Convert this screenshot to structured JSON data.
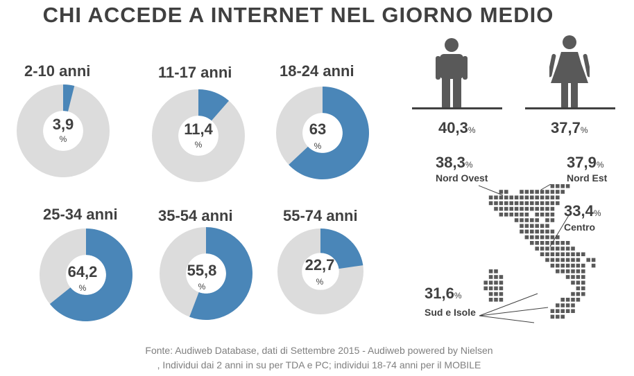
{
  "title": "CHI ACCEDE A INTERNET NEL GIORNO MEDIO",
  "percent_sign": "%",
  "age_groups": [
    {
      "label": "2-10 anni",
      "value": 3.9,
      "display": "3,9"
    },
    {
      "label": "11-17 anni",
      "value": 11.4,
      "display": "11,4"
    },
    {
      "label": "18-24 anni",
      "value": 63,
      "display": "63"
    },
    {
      "label": "25-34 anni",
      "value": 64.2,
      "display": "64,2"
    },
    {
      "label": "35-54 anni",
      "value": 55.8,
      "display": "55,8"
    },
    {
      "label": "55-74 anni",
      "value": 22.7,
      "display": "22,7"
    }
  ],
  "gender": {
    "male": {
      "value": "40,3",
      "icon": "man-icon"
    },
    "female": {
      "value": "37,7",
      "icon": "woman-icon"
    }
  },
  "regions": {
    "nord_ovest": {
      "value": "38,3",
      "label": "Nord Ovest"
    },
    "nord_est": {
      "value": "37,9",
      "label": "Nord Est"
    },
    "centro": {
      "value": "33,4",
      "label": "Centro"
    },
    "sud_isole": {
      "value": "31,6",
      "label": "Sud e Isole"
    }
  },
  "colors": {
    "filled": "#4a86b8",
    "empty": "#dcdcdc",
    "text": "#404040",
    "source": "#7f7f7f"
  },
  "footnote": {
    "line1": "Fonte: Audiweb Database, dati di Settembre 2015 - Audiweb powered by Nielsen",
    "line2": ", Individui dai 2 anni in su  per TDA e PC; individui 18-74 anni per il MOBILE"
  }
}
